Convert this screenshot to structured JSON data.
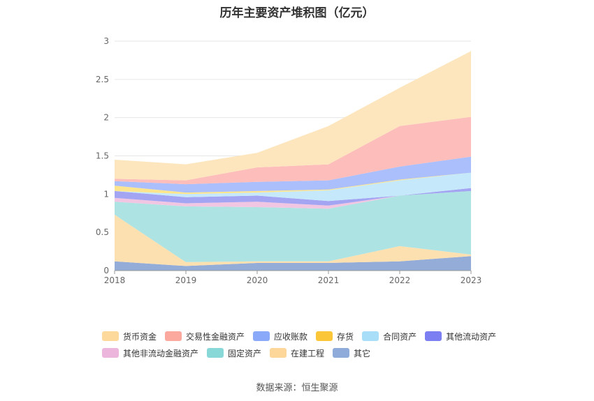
{
  "chart_data": {
    "type": "area",
    "stacked": true,
    "title": "历年主要资产堆积图（亿元）",
    "x": [
      "2018",
      "2019",
      "2020",
      "2021",
      "2022",
      "2023"
    ],
    "ylim": [
      0,
      3
    ],
    "yticks": [
      "0",
      "0.5",
      "1",
      "1.5",
      "2",
      "2.5",
      "3"
    ],
    "grid": true,
    "legend_position": "bottom",
    "series": [
      {
        "name": "其它",
        "color": "#93acd8",
        "values": [
          0.12,
          0.06,
          0.1,
          0.1,
          0.12,
          0.19
        ]
      },
      {
        "name": "在建工程",
        "color": "#fde0b0",
        "values": [
          0.61,
          0.05,
          0.02,
          0.02,
          0.2,
          0.02
        ]
      },
      {
        "name": "固定资产",
        "color": "#aee3e3",
        "values": [
          0.17,
          0.73,
          0.71,
          0.69,
          0.66,
          0.83
        ]
      },
      {
        "name": "其他非流动金融资产",
        "color": "#f0c6e2",
        "values": [
          0.05,
          0.04,
          0.07,
          0.04,
          0.0,
          0.0
        ]
      },
      {
        "name": "其他流动资产",
        "color": "#a3a4f2",
        "values": [
          0.09,
          0.08,
          0.08,
          0.06,
          0.0,
          0.04
        ]
      },
      {
        "name": "合同资产",
        "color": "#c5e9fb",
        "values": [
          0.0,
          0.04,
          0.04,
          0.14,
          0.2,
          0.2
        ]
      },
      {
        "name": "存货",
        "color": "#fde58e",
        "values": [
          0.07,
          0.02,
          0.02,
          0.01,
          0.01,
          0.0
        ]
      },
      {
        "name": "应收账款",
        "color": "#aabffb",
        "values": [
          0.06,
          0.11,
          0.12,
          0.12,
          0.17,
          0.21
        ]
      },
      {
        "name": "交易性金融资产",
        "color": "#fdbdbb",
        "values": [
          0.03,
          0.05,
          0.19,
          0.21,
          0.53,
          0.52
        ]
      },
      {
        "name": "货币资金",
        "color": "#fde6bd",
        "values": [
          0.25,
          0.21,
          0.19,
          0.5,
          0.5,
          0.86
        ]
      }
    ]
  },
  "legend": [
    {
      "label": "货币资金",
      "color": "#fdd99b"
    },
    {
      "label": "交易性金融资产",
      "color": "#fba99f"
    },
    {
      "label": "应收账款",
      "color": "#8aa9f8"
    },
    {
      "label": "存货",
      "color": "#fbc638"
    },
    {
      "label": "合同资产",
      "color": "#a9def9"
    },
    {
      "label": "其他流动资产",
      "color": "#7b7ff2"
    },
    {
      "label": "其他非流动金融资产",
      "color": "#ecb5dc"
    },
    {
      "label": "固定资产",
      "color": "#88d8d8"
    },
    {
      "label": "在建工程",
      "color": "#fdd79a"
    },
    {
      "label": "其它",
      "color": "#8fabd9"
    }
  ],
  "source": "数据来源：恒生聚源"
}
